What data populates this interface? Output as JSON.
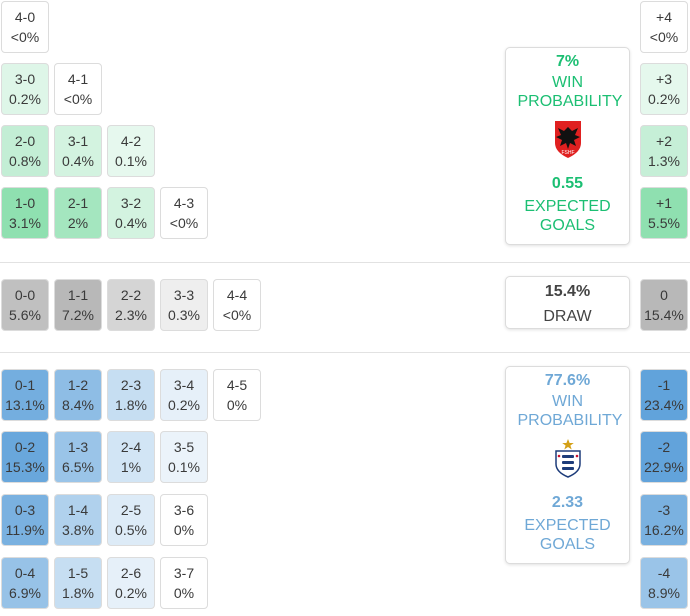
{
  "chart_data": {
    "type": "heatmap",
    "home_team": {
      "win_probability": "7%",
      "win_label": "WIN PROBABILITY",
      "expected_goals": "0.55",
      "xg_label": "EXPECTED GOALS",
      "crest_icon": "albania-fshf-crest-icon",
      "color": "#1cbf73",
      "margins": [
        {
          "margin": "+4",
          "prob": "<0%"
        },
        {
          "margin": "+3",
          "prob": "0.2%"
        },
        {
          "margin": "+2",
          "prob": "1.3%"
        },
        {
          "margin": "+1",
          "prob": "5.5%"
        }
      ],
      "scorelines": [
        [
          {
            "score": "1-0",
            "prob": "3.1%"
          },
          {
            "score": "2-1",
            "prob": "2%"
          },
          {
            "score": "3-2",
            "prob": "0.4%"
          },
          {
            "score": "4-3",
            "prob": "<0%"
          }
        ],
        [
          {
            "score": "2-0",
            "prob": "0.8%"
          },
          {
            "score": "3-1",
            "prob": "0.4%"
          },
          {
            "score": "4-2",
            "prob": "0.1%"
          }
        ],
        [
          {
            "score": "3-0",
            "prob": "0.2%"
          },
          {
            "score": "4-1",
            "prob": "<0%"
          }
        ],
        [
          {
            "score": "4-0",
            "prob": "<0%"
          }
        ]
      ]
    },
    "draw": {
      "probability": "15.4%",
      "label": "DRAW",
      "margin": {
        "margin": "0",
        "prob": "15.4%"
      },
      "scorelines": [
        {
          "score": "0-0",
          "prob": "5.6%"
        },
        {
          "score": "1-1",
          "prob": "7.2%"
        },
        {
          "score": "2-2",
          "prob": "2.3%"
        },
        {
          "score": "3-3",
          "prob": "0.3%"
        },
        {
          "score": "4-4",
          "prob": "<0%"
        }
      ]
    },
    "away_team": {
      "win_probability": "77.6%",
      "win_label": "WIN PROBABILITY",
      "expected_goals": "2.33",
      "xg_label": "EXPECTED GOALS",
      "crest_icon": "england-three-lions-crest-icon",
      "color": "#6fa8d6",
      "margins": [
        {
          "margin": "-1",
          "prob": "23.4%"
        },
        {
          "margin": "-2",
          "prob": "22.9%"
        },
        {
          "margin": "-3",
          "prob": "16.2%"
        },
        {
          "margin": "-4",
          "prob": "8.9%"
        }
      ],
      "scorelines": [
        [
          {
            "score": "0-1",
            "prob": "13.1%"
          },
          {
            "score": "1-2",
            "prob": "8.4%"
          },
          {
            "score": "2-3",
            "prob": "1.8%"
          },
          {
            "score": "3-4",
            "prob": "0.2%"
          },
          {
            "score": "4-5",
            "prob": "0%"
          }
        ],
        [
          {
            "score": "0-2",
            "prob": "15.3%"
          },
          {
            "score": "1-3",
            "prob": "6.5%"
          },
          {
            "score": "2-4",
            "prob": "1%"
          },
          {
            "score": "3-5",
            "prob": "0.1%"
          }
        ],
        [
          {
            "score": "0-3",
            "prob": "11.9%"
          },
          {
            "score": "1-4",
            "prob": "3.8%"
          },
          {
            "score": "2-5",
            "prob": "0.5%"
          },
          {
            "score": "3-6",
            "prob": "0%"
          }
        ],
        [
          {
            "score": "0-4",
            "prob": "6.9%"
          },
          {
            "score": "1-5",
            "prob": "1.8%"
          },
          {
            "score": "2-6",
            "prob": "0.2%"
          },
          {
            "score": "3-7",
            "prob": "0%"
          }
        ]
      ]
    }
  }
}
